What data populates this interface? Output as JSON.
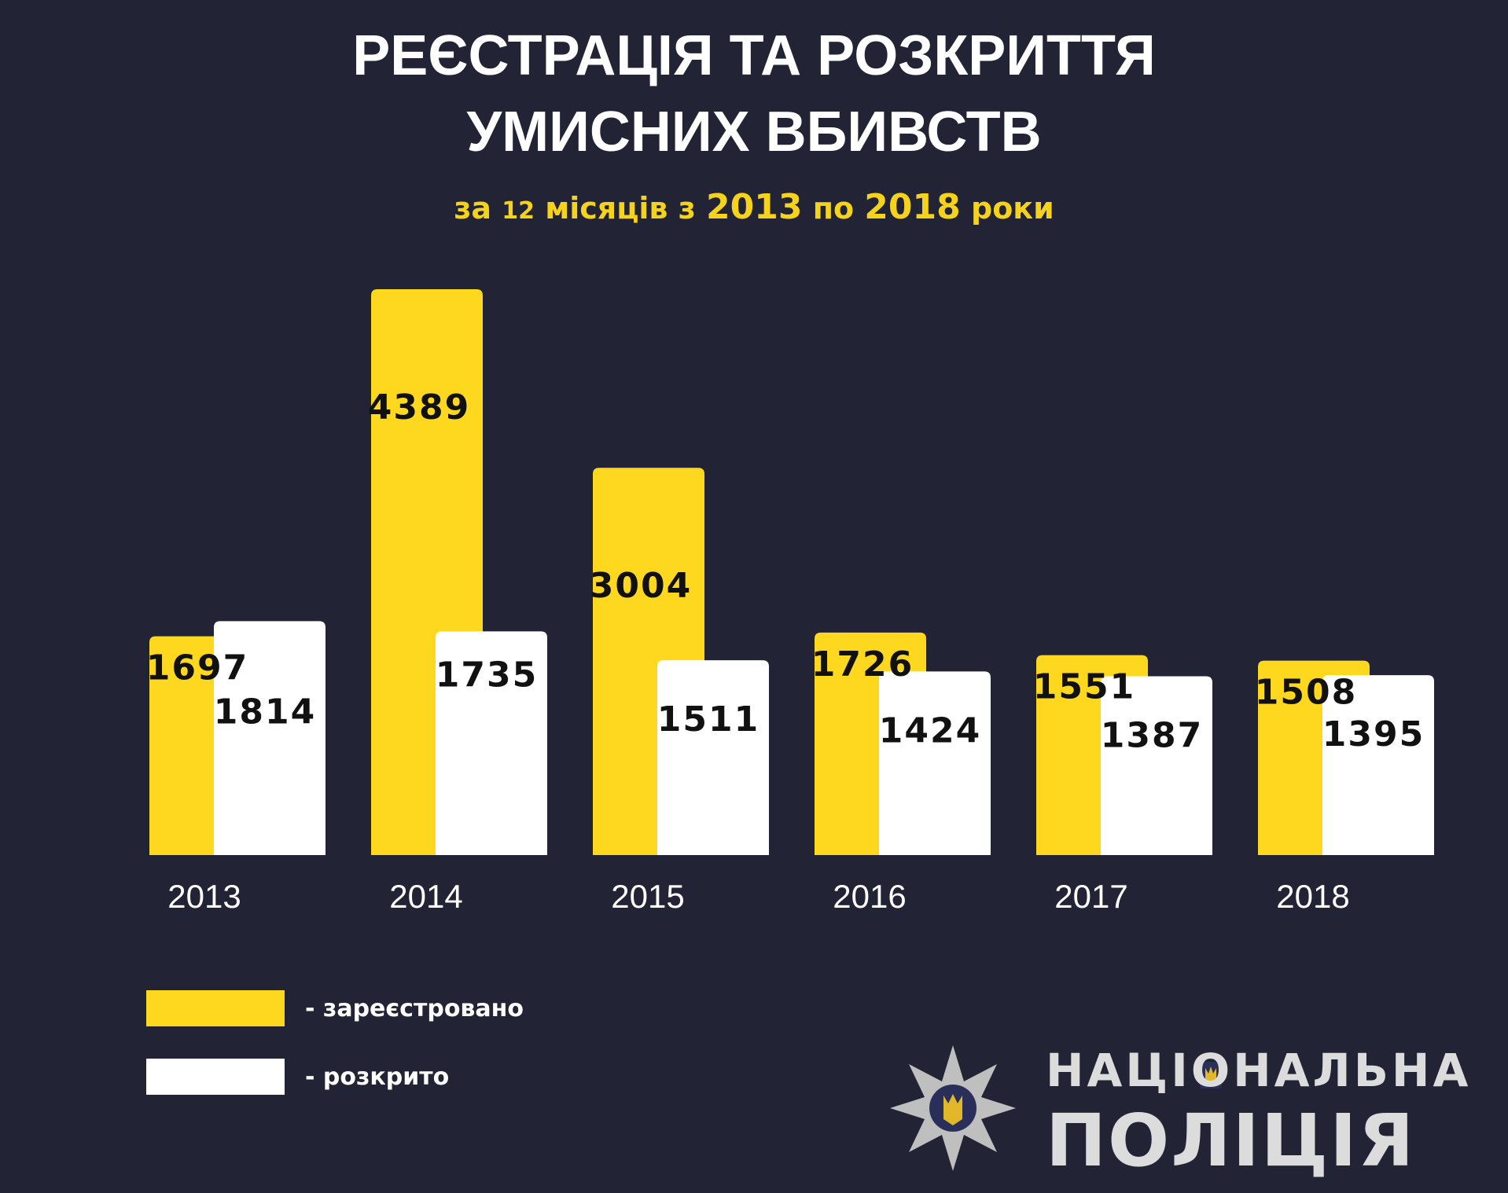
{
  "header": {
    "title_line1": "РЕЄСТРАЦІЯ ТА РОЗКРИТТЯ",
    "title_line2": "УМИСНИХ ВБИВСТВ",
    "subtitle_pre": "за ",
    "subtitle_num": "12",
    "subtitle_mid": " місяців з ",
    "subtitle_year_from": "2013",
    "subtitle_by": " по ",
    "subtitle_year_to": "2018",
    "subtitle_post": " роки"
  },
  "colors": {
    "background": "#222334",
    "registered": "#fdd81e",
    "solved": "#ffffff",
    "label_text": "#111111",
    "axis_text": "#ffffff"
  },
  "chart_data": {
    "type": "bar",
    "title": "РЕЄСТРАЦІЯ ТА РОЗКРИТТЯ УМИСНИХ ВБИВСТВ",
    "subtitle": "за 12 місяців з 2013 по 2018 роки",
    "categories": [
      "2013",
      "2014",
      "2015",
      "2016",
      "2017",
      "2018"
    ],
    "series": [
      {
        "name": "зареєстровано",
        "values": [
          1697,
          4389,
          3004,
          1726,
          1551,
          1508
        ]
      },
      {
        "name": "розкрито",
        "values": [
          1814,
          1735,
          1511,
          1424,
          1387,
          1395
        ]
      }
    ],
    "xlabel": "",
    "ylabel": "",
    "legend_position": "bottom-left",
    "grid": false
  },
  "legend": {
    "registered_label": "- зареєстровано",
    "solved_label": "- розкрито"
  },
  "logo": {
    "line1": "НАЦІОНАЛЬНА",
    "line2": "ПОЛІЦІЯ",
    "icon": "police-star-emblem-icon"
  }
}
